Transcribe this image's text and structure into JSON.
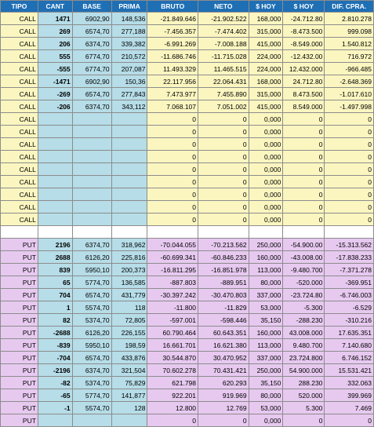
{
  "headers": [
    "TIPO",
    "CANT",
    "BASE",
    "PRIMA",
    "BRUTO",
    "NETO",
    "$ HOY",
    "$ HOY",
    "DIF. CPRA."
  ],
  "call_rows": [
    [
      "CALL",
      "1471",
      "6902,90",
      "148,536",
      "-21.849.646",
      "-21.902.522",
      "168,000",
      "-24.712.80",
      "2.810.278"
    ],
    [
      "CALL",
      "269",
      "6574,70",
      "277,188",
      "-7.456.357",
      "-7.474.402",
      "315,000",
      "-8.473.500",
      "999.098"
    ],
    [
      "CALL",
      "206",
      "6374,70",
      "339,382",
      "-6.991.269",
      "-7.008.188",
      "415,000",
      "-8.549.000",
      "1.540.812"
    ],
    [
      "CALL",
      "555",
      "6774,70",
      "210,572",
      "-11.686.746",
      "-11.715.028",
      "224,000",
      "-12.432.00",
      "716.972"
    ],
    [
      "CALL",
      "-555",
      "6774,70",
      "207,087",
      "11.493.329",
      "11.465.515",
      "224,000",
      "12.432.000",
      "-966.485"
    ],
    [
      "CALL",
      "-1471",
      "6902,90",
      "150,36",
      "22.117.956",
      "22.064.431",
      "168,000",
      "24.712.80",
      "-2.648.369"
    ],
    [
      "CALL",
      "-269",
      "6574,70",
      "277,843",
      "7.473.977",
      "7.455.890",
      "315,000",
      "8.473.500",
      "-1.017.610"
    ],
    [
      "CALL",
      "-206",
      "6374,70",
      "343,112",
      "7.068.107",
      "7.051.002",
      "415,000",
      "8.549.000",
      "-1.497.998"
    ],
    [
      "CALL",
      "",
      "",
      "",
      "0",
      "0",
      "0,000",
      "0",
      "0"
    ],
    [
      "CALL",
      "",
      "",
      "",
      "0",
      "0",
      "0,000",
      "0",
      "0"
    ],
    [
      "CALL",
      "",
      "",
      "",
      "0",
      "0",
      "0,000",
      "0",
      "0"
    ],
    [
      "CALL",
      "",
      "",
      "",
      "0",
      "0",
      "0,000",
      "0",
      "0"
    ],
    [
      "CALL",
      "",
      "",
      "",
      "0",
      "0",
      "0,000",
      "0",
      "0"
    ],
    [
      "CALL",
      "",
      "",
      "",
      "0",
      "0",
      "0,000",
      "0",
      "0"
    ],
    [
      "CALL",
      "",
      "",
      "",
      "0",
      "0",
      "0,000",
      "0",
      "0"
    ],
    [
      "CALL",
      "",
      "",
      "",
      "0",
      "0",
      "0,000",
      "0",
      "0"
    ],
    [
      "CALL",
      "",
      "",
      "",
      "0",
      "0",
      "0,000",
      "0",
      "0"
    ]
  ],
  "put_rows": [
    [
      "PUT",
      "2196",
      "6374,70",
      "318,962",
      "-70.044.055",
      "-70.213.562",
      "250,000",
      "-54.900.00",
      "-15.313.562"
    ],
    [
      "PUT",
      "2688",
      "6126,20",
      "225,816",
      "-60.699.341",
      "-60.846.233",
      "160,000",
      "-43.008.00",
      "-17.838.233"
    ],
    [
      "PUT",
      "839",
      "5950,10",
      "200,373",
      "-16.811.295",
      "-16.851.978",
      "113,000",
      "-9.480.700",
      "-7.371.278"
    ],
    [
      "PUT",
      "65",
      "5774,70",
      "136,585",
      "-887.803",
      "-889.951",
      "80,000",
      "-520.000",
      "-369.951"
    ],
    [
      "PUT",
      "704",
      "6574,70",
      "431,779",
      "-30.397.242",
      "-30.470.803",
      "337,000",
      "-23.724.80",
      "-6.746.003"
    ],
    [
      "PUT",
      "1",
      "5574,70",
      "118",
      "-11.800",
      "-11.829",
      "53,000",
      "-5.300",
      "-6.529"
    ],
    [
      "PUT",
      "82",
      "5374,70",
      "72,805",
      "-597.001",
      "-598.446",
      "35,150",
      "-288.230",
      "-310.216"
    ],
    [
      "PUT",
      "-2688",
      "6126,20",
      "226,155",
      "60.790.464",
      "60.643.351",
      "160,000",
      "43.008.000",
      "17.635.351"
    ],
    [
      "PUT",
      "-839",
      "5950,10",
      "198,59",
      "16.661.701",
      "16.621.380",
      "113,000",
      "9.480.700",
      "7.140.680"
    ],
    [
      "PUT",
      "-704",
      "6574,70",
      "433,876",
      "30.544.870",
      "30.470.952",
      "337,000",
      "23.724.800",
      "6.746.152"
    ],
    [
      "PUT",
      "-2196",
      "6374,70",
      "321,504",
      "70.602.278",
      "70.431.421",
      "250,000",
      "54.900.000",
      "15.531.421"
    ],
    [
      "PUT",
      "-82",
      "5374,70",
      "75,829",
      "621.798",
      "620.293",
      "35,150",
      "288.230",
      "332.063"
    ],
    [
      "PUT",
      "-65",
      "5774,70",
      "141,877",
      "922.201",
      "919.969",
      "80,000",
      "520.000",
      "399.969"
    ],
    [
      "PUT",
      "-1",
      "5574,70",
      "128",
      "12.800",
      "12.769",
      "53,000",
      "5.300",
      "7.469"
    ],
    [
      "PUT",
      "",
      "",
      "",
      "0",
      "0",
      "0,000",
      "0",
      "0"
    ]
  ]
}
